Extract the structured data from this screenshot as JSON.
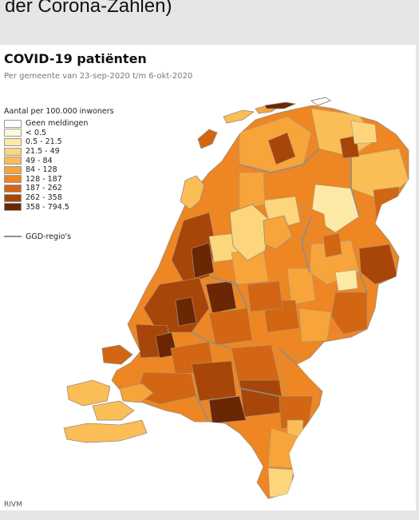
{
  "caption": {
    "text": "der Corona-Zahlen)"
  },
  "map": {
    "title": "COVID-19 patiënten",
    "subtitle": "Per gemeente van 23-sep-2020 t/m 6-okt-2020",
    "source": "RIVM"
  },
  "legend": {
    "title": "Aantal per 100.000 inwoners",
    "classes": [
      {
        "label": "Geen meldingen",
        "color": "#ffffff"
      },
      {
        "label": "< 0.5",
        "color": "#fff9dc"
      },
      {
        "label": "0.5 - 21.5",
        "color": "#fde9a6"
      },
      {
        "label": "21.5 - 49",
        "color": "#fdd67b"
      },
      {
        "label": "49 - 84",
        "color": "#fbbd56"
      },
      {
        "label": "84 - 128",
        "color": "#f7a43a"
      },
      {
        "label": "128 - 187",
        "color": "#ed8623"
      },
      {
        "label": "187 - 262",
        "color": "#d26612"
      },
      {
        "label": "262 - 358",
        "color": "#a84609"
      },
      {
        "label": "358 - 794.5",
        "color": "#6b2604"
      }
    ],
    "region_label": "GGD-regio's",
    "region_line_color": "#8d8d8d"
  }
}
